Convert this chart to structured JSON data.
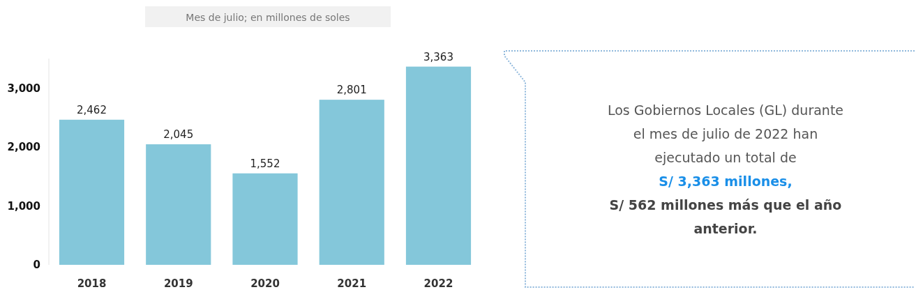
{
  "chart_data": {
    "type": "bar",
    "subtitle": "Mes de julio; en millones de soles",
    "categories": [
      "2018",
      "2019",
      "2020",
      "2021",
      "2022"
    ],
    "values": [
      2462,
      2045,
      1552,
      2801,
      3363
    ],
    "color": "#84c7da",
    "ylim": [
      0,
      3500
    ],
    "yticks": [
      {
        "value": 0,
        "label": "0"
      },
      {
        "value": 1000,
        "label": "1,000"
      },
      {
        "value": 2000,
        "label": "2,000"
      },
      {
        "value": 3000,
        "label": "3,000"
      }
    ],
    "grid": false,
    "value_labels": [
      "2,462",
      "2,045",
      "1,552",
      "2,801",
      "3,363"
    ],
    "annotations": [
      "Los Gobiernos Locales (GL) durante el mes de julio de 2022 han ejecutado un total de",
      "S/ 3,363 millones,",
      "S/ 562 millones más que el año anterior."
    ]
  }
}
